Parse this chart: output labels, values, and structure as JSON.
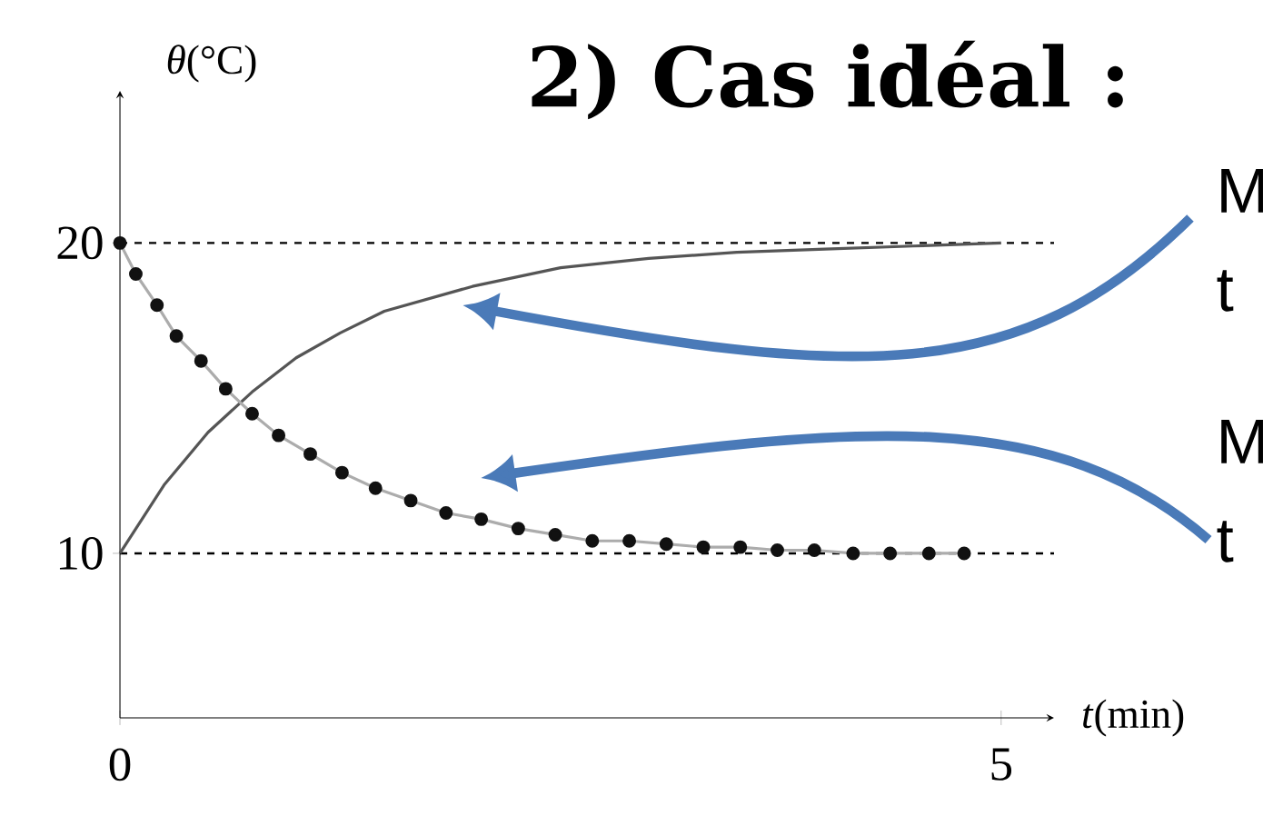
{
  "chart_data": {
    "type": "line",
    "title": "2) Cas idéal :",
    "xlabel": "*t*(min)",
    "ylabel": "*θ*(°C)",
    "xlim": [
      0,
      5.3
    ],
    "ylim": [
      4.7,
      24.9
    ],
    "xticks": [
      0,
      5
    ],
    "yticks": [
      10,
      20
    ],
    "series": [
      {
        "color": "#555555",
        "marker": "none",
        "line_style": "solid",
        "x": [
          0,
          0.25,
          0.5,
          0.75,
          1,
          1.25,
          1.5,
          2,
          2.5,
          3,
          3.5,
          4,
          4.5,
          5
        ],
        "values": [
          10,
          12.2,
          13.9,
          15.2,
          16.3,
          17.1,
          17.8,
          18.6,
          19.2,
          19.5,
          19.7,
          19.8,
          19.9,
          20
        ]
      },
      {
        "color": "#111111",
        "marker": "circle",
        "line_style": "solid",
        "x": [
          0,
          0.09,
          0.21,
          0.32,
          0.46,
          0.6,
          0.75,
          0.9,
          1.08,
          1.26,
          1.45,
          1.65,
          1.85,
          2.05,
          2.26,
          2.47,
          2.68,
          2.89,
          3.1,
          3.31,
          3.52,
          3.73,
          3.94,
          4.16,
          4.37,
          4.59,
          4.79
        ],
        "values": [
          20,
          19,
          18,
          17,
          16.2,
          15.3,
          14.5,
          13.8,
          13.2,
          12.6,
          12.1,
          11.7,
          11.3,
          11.1,
          10.8,
          10.6,
          10.4,
          10.4,
          10.3,
          10.2,
          10.2,
          10.1,
          10.1,
          10,
          10,
          10,
          10
        ]
      }
    ],
    "ref_lines": [
      {
        "axis": "y",
        "value": 20,
        "line_style": "dashed"
      },
      {
        "axis": "y",
        "value": 10,
        "line_style": "dashed"
      }
    ],
    "annotations": [
      "M",
      "t",
      "M",
      "t"
    ]
  }
}
